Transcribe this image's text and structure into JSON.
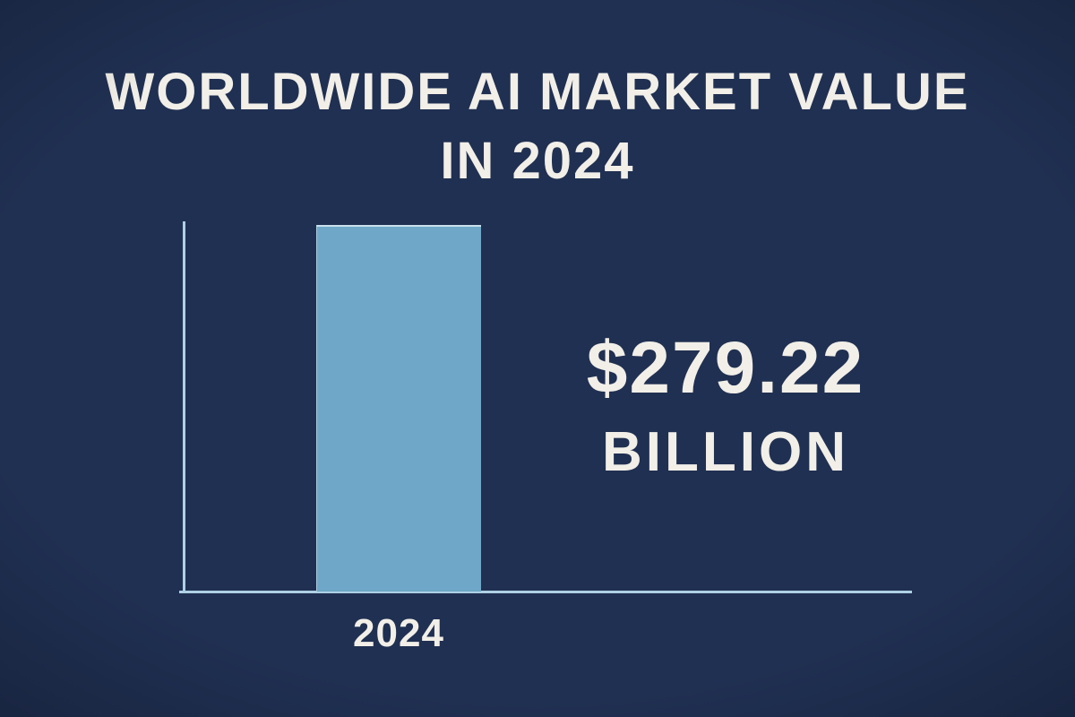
{
  "title": {
    "line1": "WORLDWIDE AI MARKET VALUE",
    "line2": "IN 2024"
  },
  "callout": {
    "amount": "$279.22",
    "unit": "BILLION"
  },
  "colors": {
    "background": "#203052",
    "bar": "#6fa7c8",
    "axis": "#aed0e4",
    "text": "#f2efe8"
  },
  "chart_data": {
    "type": "bar",
    "title": "Worldwide AI Market Value in 2024",
    "categories": [
      "2024"
    ],
    "values": [
      279.22
    ],
    "value_labels": [
      "$279.22 BILLION"
    ],
    "xlabel": "",
    "ylabel": "",
    "ylim": [
      0,
      283
    ],
    "grid": false,
    "legend": "none"
  }
}
